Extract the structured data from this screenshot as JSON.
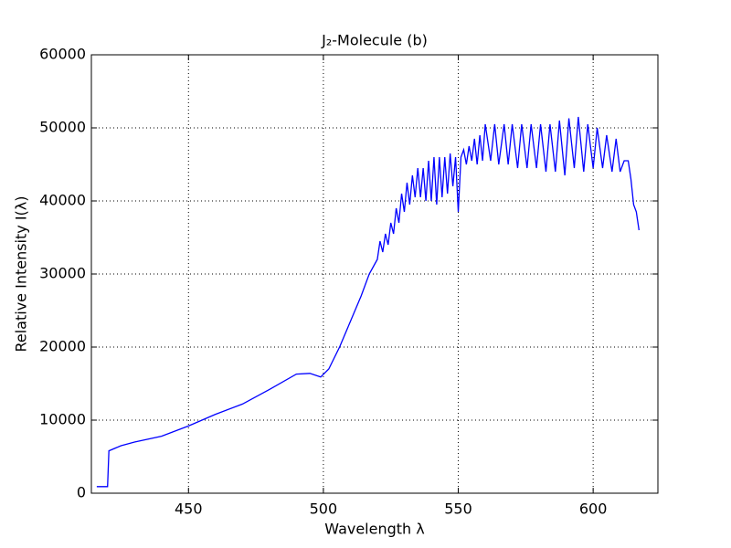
{
  "chart_data": {
    "type": "line",
    "title": "J₂-Molecule (b)",
    "x_label": "Wavelength λ",
    "y_label": "Relative Intensity I(λ)",
    "color": "#0000ff",
    "grid": true,
    "xlim": [
      414,
      624
    ],
    "ylim": [
      0,
      60000
    ],
    "xticks": [
      450,
      500,
      550,
      600
    ],
    "yticks": [
      0,
      10000,
      20000,
      30000,
      40000,
      50000,
      60000
    ],
    "x": [
      416,
      420,
      420.5,
      425,
      430,
      440,
      450,
      460,
      470,
      480,
      490,
      495,
      499,
      502,
      506,
      510,
      514,
      517,
      520,
      521,
      522,
      523,
      524,
      525,
      526,
      527,
      528,
      529,
      530,
      531,
      532,
      533,
      534,
      535,
      536,
      537,
      538,
      539,
      540,
      541,
      542,
      543,
      544,
      545,
      546,
      547,
      548,
      549,
      550,
      551,
      552,
      553,
      554,
      555,
      556,
      557,
      558,
      559,
      560,
      562,
      563.5,
      565,
      567,
      568.5,
      570,
      572,
      573.5,
      575.5,
      577,
      579,
      580.5,
      582.5,
      584,
      586,
      587.5,
      589.5,
      591,
      593,
      594.5,
      596.5,
      598,
      600,
      601.5,
      603.5,
      605,
      607,
      608.5,
      610,
      611.5,
      613,
      614,
      615,
      616,
      617
    ],
    "values": [
      900,
      900,
      5800,
      6500,
      7000,
      7800,
      9200,
      10800,
      12200,
      14200,
      16300,
      16400,
      15900,
      17000,
      20000,
      23500,
      27000,
      30000,
      32000,
      34500,
      33000,
      35500,
      34000,
      37000,
      35500,
      39000,
      37000,
      41000,
      38500,
      42500,
      39500,
      43500,
      40500,
      44500,
      40500,
      44500,
      40000,
      45500,
      40000,
      46000,
      39500,
      46000,
      40500,
      46000,
      41000,
      46500,
      42000,
      46000,
      38500,
      46000,
      47000,
      45000,
      47500,
      45500,
      48500,
      45000,
      49000,
      45500,
      50500,
      45500,
      50500,
      45000,
      50500,
      45000,
      50500,
      44500,
      50500,
      44500,
      50500,
      44500,
      50500,
      44000,
      50500,
      44000,
      51000,
      43500,
      51300,
      44500,
      51500,
      44000,
      50500,
      44500,
      50000,
      44500,
      49000,
      44000,
      48500,
      44000,
      45500,
      45500,
      43000,
      39500,
      38500,
      36000
    ]
  }
}
